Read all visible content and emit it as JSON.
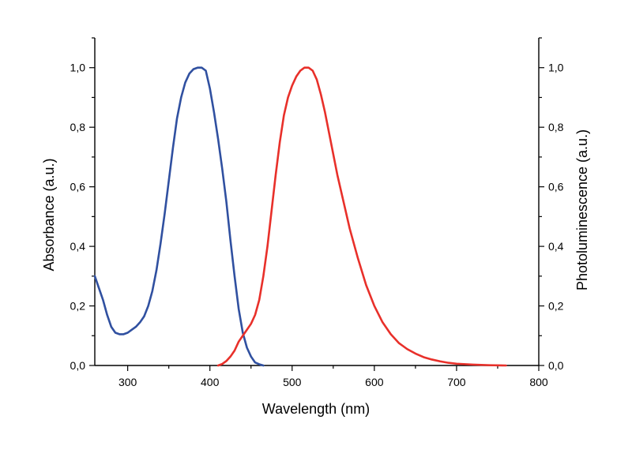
{
  "chart_data": {
    "type": "line",
    "xlabel": "Wavelength (nm)",
    "ylabel_left": "Absorbance (a.u.)",
    "ylabel_right": "Photoluminescence (a.u.)",
    "xlim": [
      260,
      800
    ],
    "ylim": [
      0,
      1.1
    ],
    "x_ticks": [
      300,
      400,
      500,
      600,
      700,
      800
    ],
    "x_tick_labels": [
      "300",
      "400",
      "500",
      "600",
      "700",
      "800"
    ],
    "y_ticks": [
      0,
      0.2,
      0.4,
      0.6,
      0.8,
      1.0
    ],
    "y_tick_labels": [
      "0,0",
      "0,2",
      "0,4",
      "0,6",
      "0,8",
      "1,0"
    ],
    "grid": false,
    "legend": "none",
    "series": [
      {
        "color": "#3050a0",
        "axis": "left",
        "x": [
          260,
          265,
          270,
          275,
          280,
          285,
          290,
          295,
          300,
          305,
          310,
          315,
          320,
          325,
          330,
          335,
          340,
          345,
          350,
          355,
          360,
          365,
          370,
          375,
          380,
          385,
          390,
          395,
          400,
          405,
          410,
          415,
          420,
          425,
          430,
          435,
          440,
          445,
          450,
          455,
          460,
          465
        ],
        "y": [
          0.3,
          0.26,
          0.22,
          0.17,
          0.13,
          0.11,
          0.105,
          0.105,
          0.11,
          0.12,
          0.13,
          0.145,
          0.165,
          0.2,
          0.25,
          0.32,
          0.41,
          0.51,
          0.62,
          0.73,
          0.83,
          0.9,
          0.95,
          0.98,
          0.995,
          1.0,
          1.0,
          0.99,
          0.93,
          0.85,
          0.76,
          0.66,
          0.55,
          0.42,
          0.3,
          0.19,
          0.11,
          0.06,
          0.03,
          0.01,
          0.004,
          0.0
        ]
      },
      {
        "color": "#e8302a",
        "axis": "right",
        "x": [
          410,
          415,
          420,
          425,
          430,
          435,
          440,
          445,
          450,
          455,
          460,
          465,
          470,
          475,
          480,
          485,
          490,
          495,
          500,
          505,
          510,
          515,
          520,
          525,
          530,
          535,
          540,
          545,
          550,
          555,
          560,
          565,
          570,
          575,
          580,
          590,
          600,
          610,
          620,
          630,
          640,
          650,
          660,
          670,
          680,
          690,
          700,
          720,
          740,
          760
        ],
        "y": [
          0.0,
          0.005,
          0.015,
          0.03,
          0.05,
          0.08,
          0.1,
          0.12,
          0.14,
          0.17,
          0.22,
          0.3,
          0.4,
          0.52,
          0.64,
          0.75,
          0.84,
          0.9,
          0.94,
          0.97,
          0.99,
          1.0,
          1.0,
          0.99,
          0.96,
          0.91,
          0.85,
          0.78,
          0.71,
          0.64,
          0.58,
          0.52,
          0.46,
          0.41,
          0.36,
          0.27,
          0.2,
          0.145,
          0.105,
          0.075,
          0.055,
          0.04,
          0.028,
          0.02,
          0.014,
          0.009,
          0.006,
          0.003,
          0.001,
          0.0
        ]
      }
    ]
  }
}
